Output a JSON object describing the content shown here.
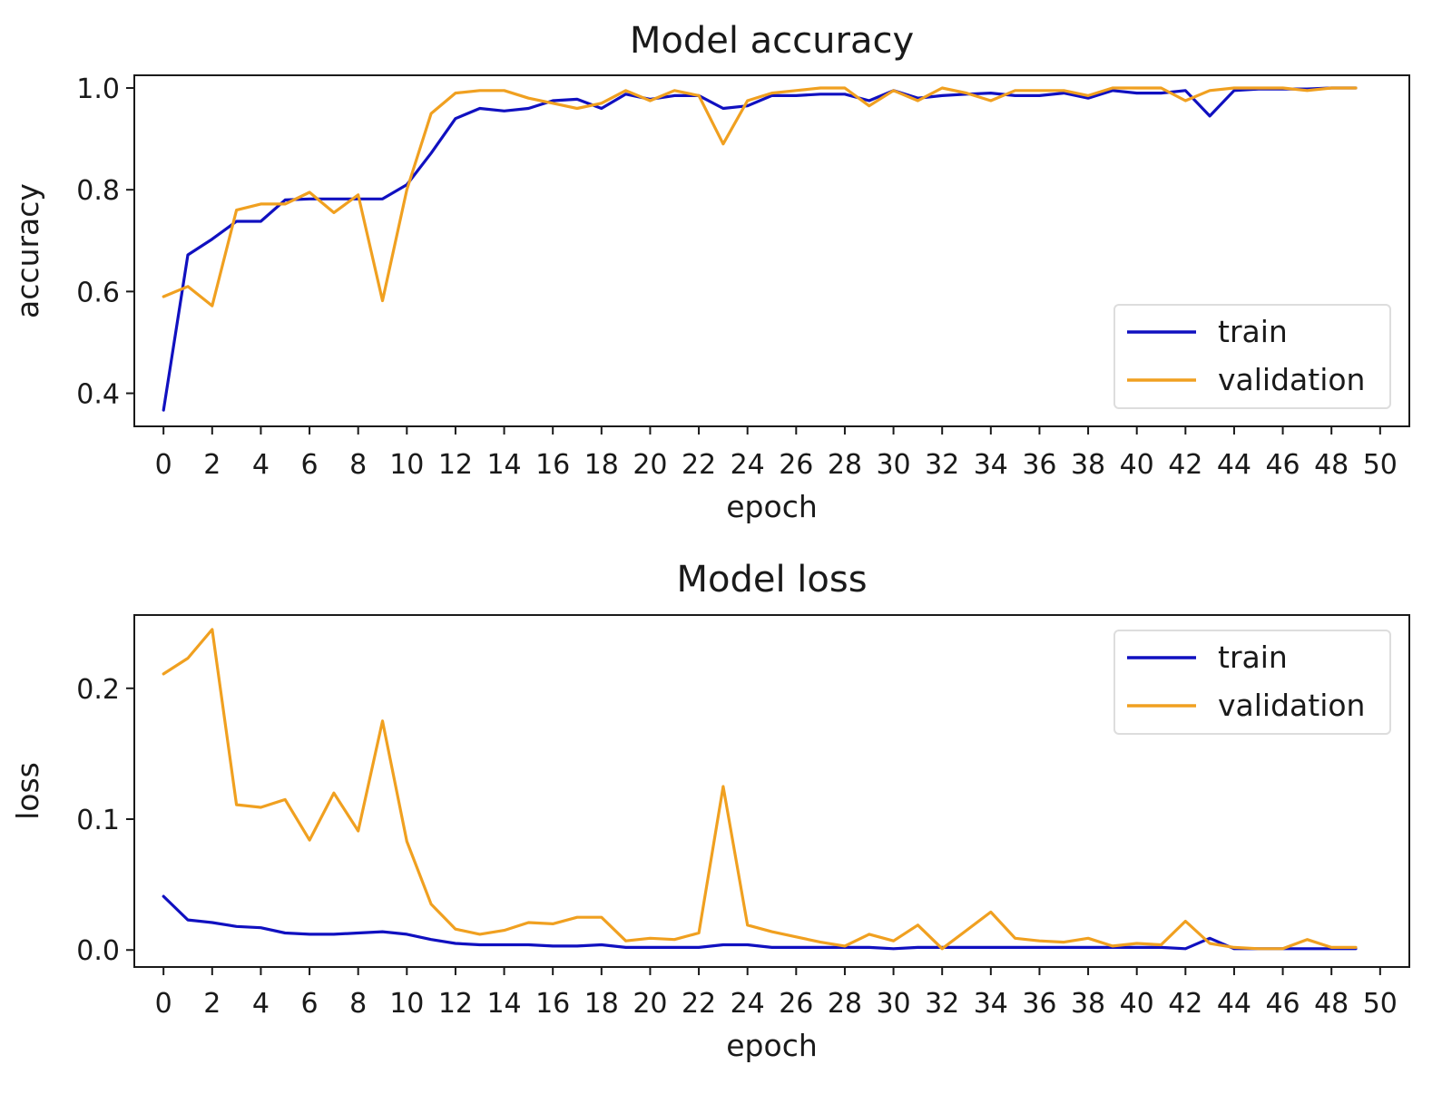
{
  "chart_data": [
    {
      "type": "line",
      "title": "Model accuracy",
      "xlabel": "epoch",
      "ylabel": "accuracy",
      "xlim": [
        -1.2,
        51.2
      ],
      "ylim": [
        0.335,
        1.025
      ],
      "xticks": [
        0,
        2,
        4,
        6,
        8,
        10,
        12,
        14,
        16,
        18,
        20,
        22,
        24,
        26,
        28,
        30,
        32,
        34,
        36,
        38,
        40,
        42,
        44,
        46,
        48,
        50
      ],
      "yticks": [
        0.4,
        0.6,
        0.8,
        1.0
      ],
      "ytick_labels": [
        "0.4",
        "0.6",
        "0.8",
        "1.0"
      ],
      "legend_position": "center-right",
      "grid": false,
      "x": [
        0,
        1,
        2,
        3,
        4,
        5,
        6,
        7,
        8,
        9,
        10,
        11,
        12,
        13,
        14,
        15,
        16,
        17,
        18,
        19,
        20,
        21,
        22,
        23,
        24,
        25,
        26,
        27,
        28,
        29,
        30,
        31,
        32,
        33,
        34,
        35,
        36,
        37,
        38,
        39,
        40,
        41,
        42,
        43,
        44,
        45,
        46,
        47,
        48,
        49
      ],
      "series": [
        {
          "name": "train",
          "color": "#1010c0",
          "values": [
            0.367,
            0.672,
            0.703,
            0.738,
            0.738,
            0.78,
            0.782,
            0.782,
            0.782,
            0.782,
            0.81,
            0.872,
            0.94,
            0.96,
            0.955,
            0.96,
            0.975,
            0.978,
            0.96,
            0.988,
            0.978,
            0.985,
            0.985,
            0.96,
            0.965,
            0.985,
            0.985,
            0.988,
            0.988,
            0.975,
            0.995,
            0.98,
            0.985,
            0.988,
            0.99,
            0.985,
            0.985,
            0.99,
            0.98,
            0.995,
            0.99,
            0.99,
            0.995,
            0.945,
            0.995,
            0.998,
            0.998,
            0.998,
            1.0,
            1.0
          ]
        },
        {
          "name": "validation",
          "color": "#f0a020",
          "values": [
            0.59,
            0.61,
            0.572,
            0.76,
            0.772,
            0.772,
            0.795,
            0.755,
            0.79,
            0.582,
            0.8,
            0.95,
            0.99,
            0.995,
            0.995,
            0.98,
            0.97,
            0.96,
            0.97,
            0.995,
            0.975,
            0.995,
            0.985,
            0.89,
            0.975,
            0.99,
            0.995,
            1.0,
            1.0,
            0.965,
            0.995,
            0.975,
            1.0,
            0.99,
            0.975,
            0.995,
            0.995,
            0.995,
            0.985,
            1.0,
            1.0,
            1.0,
            0.975,
            0.995,
            1.0,
            1.0,
            1.0,
            0.995,
            1.0,
            1.0
          ]
        }
      ]
    },
    {
      "type": "line",
      "title": "Model loss",
      "xlabel": "epoch",
      "ylabel": "loss",
      "xlim": [
        -1.2,
        51.2
      ],
      "ylim": [
        -0.013,
        0.256
      ],
      "xticks": [
        0,
        2,
        4,
        6,
        8,
        10,
        12,
        14,
        16,
        18,
        20,
        22,
        24,
        26,
        28,
        30,
        32,
        34,
        36,
        38,
        40,
        42,
        44,
        46,
        48,
        50
      ],
      "yticks": [
        0.0,
        0.1,
        0.2
      ],
      "ytick_labels": [
        "0.0",
        "0.1",
        "0.2"
      ],
      "legend_position": "upper-right",
      "grid": false,
      "x": [
        0,
        1,
        2,
        3,
        4,
        5,
        6,
        7,
        8,
        9,
        10,
        11,
        12,
        13,
        14,
        15,
        16,
        17,
        18,
        19,
        20,
        21,
        22,
        23,
        24,
        25,
        26,
        27,
        28,
        29,
        30,
        31,
        32,
        33,
        34,
        35,
        36,
        37,
        38,
        39,
        40,
        41,
        42,
        43,
        44,
        45,
        46,
        47,
        48,
        49
      ],
      "series": [
        {
          "name": "train",
          "color": "#1010c0",
          "values": [
            0.041,
            0.023,
            0.021,
            0.018,
            0.017,
            0.013,
            0.012,
            0.012,
            0.013,
            0.014,
            0.012,
            0.008,
            0.005,
            0.004,
            0.004,
            0.004,
            0.003,
            0.003,
            0.004,
            0.002,
            0.002,
            0.002,
            0.002,
            0.004,
            0.004,
            0.002,
            0.002,
            0.002,
            0.002,
            0.002,
            0.001,
            0.002,
            0.002,
            0.002,
            0.002,
            0.002,
            0.002,
            0.002,
            0.002,
            0.002,
            0.002,
            0.002,
            0.001,
            0.009,
            0.001,
            0.001,
            0.001,
            0.001,
            0.001,
            0.001
          ]
        },
        {
          "name": "validation",
          "color": "#f0a020",
          "values": [
            0.211,
            0.223,
            0.245,
            0.111,
            0.109,
            0.115,
            0.084,
            0.12,
            0.091,
            0.175,
            0.083,
            0.035,
            0.016,
            0.012,
            0.015,
            0.021,
            0.02,
            0.025,
            0.025,
            0.007,
            0.009,
            0.008,
            0.013,
            0.125,
            0.019,
            0.014,
            0.01,
            0.006,
            0.003,
            0.012,
            0.007,
            0.019,
            0.001,
            0.015,
            0.029,
            0.009,
            0.007,
            0.006,
            0.009,
            0.003,
            0.005,
            0.004,
            0.022,
            0.005,
            0.002,
            0.001,
            0.001,
            0.008,
            0.002,
            0.002
          ]
        }
      ]
    }
  ]
}
